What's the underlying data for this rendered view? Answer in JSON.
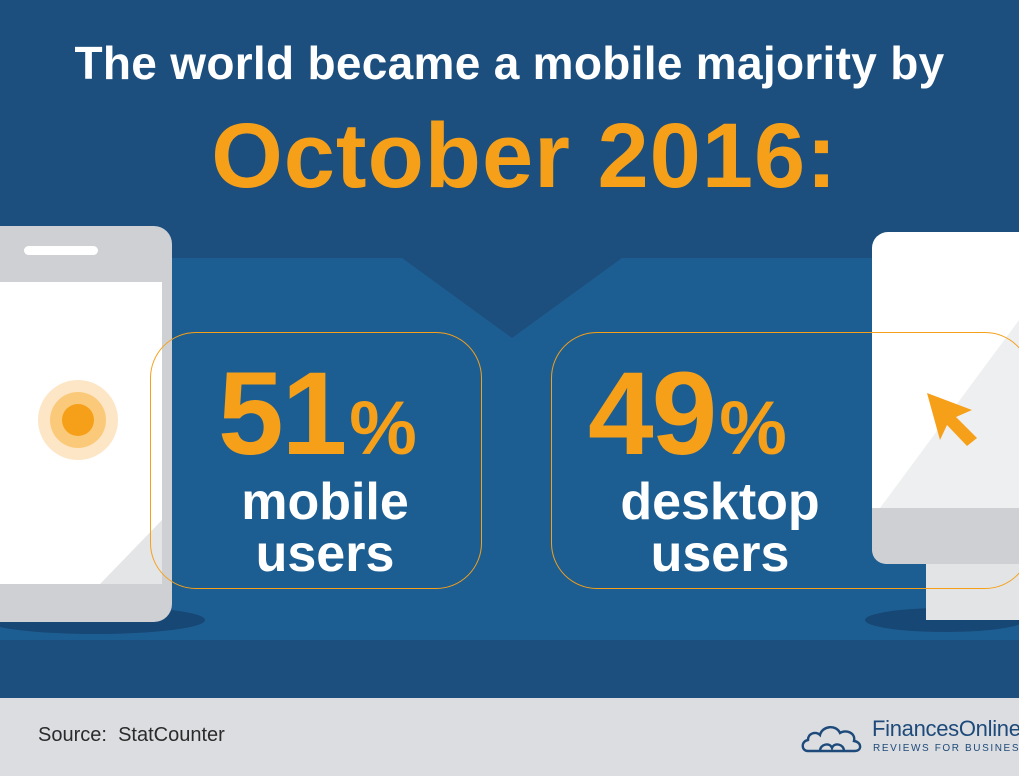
{
  "headline": {
    "text_plain": "The world became a ",
    "text_bold": "mobile majority",
    "text_end": " by"
  },
  "date": "October 2016:",
  "stats": {
    "mobile": {
      "number": "51",
      "percent_sign": "%",
      "line1": "mobile",
      "line2": "users",
      "value_percent": 51
    },
    "desktop": {
      "number": "49",
      "percent_sign": "%",
      "line1": "desktop",
      "line2": "users",
      "value_percent": 49
    }
  },
  "footer": {
    "source_label": "Source:",
    "source_value": "StatCounter"
  },
  "brand": {
    "name": "FinancesOnline",
    "tagline": "REVIEWS FOR BUSINESS"
  },
  "colors": {
    "background": "#1c4f7e",
    "panel": "#1c5f93",
    "accent": "#f6a01a",
    "text": "#ffffff",
    "footer": "#dcdde0",
    "brand": "#1d4a7a"
  },
  "icons": {
    "phone": "smartphone-icon",
    "touch": "touch-target-icon",
    "monitor": "desktop-monitor-icon",
    "cursor": "cursor-arrow-icon",
    "logo": "cloud-logo-icon"
  }
}
